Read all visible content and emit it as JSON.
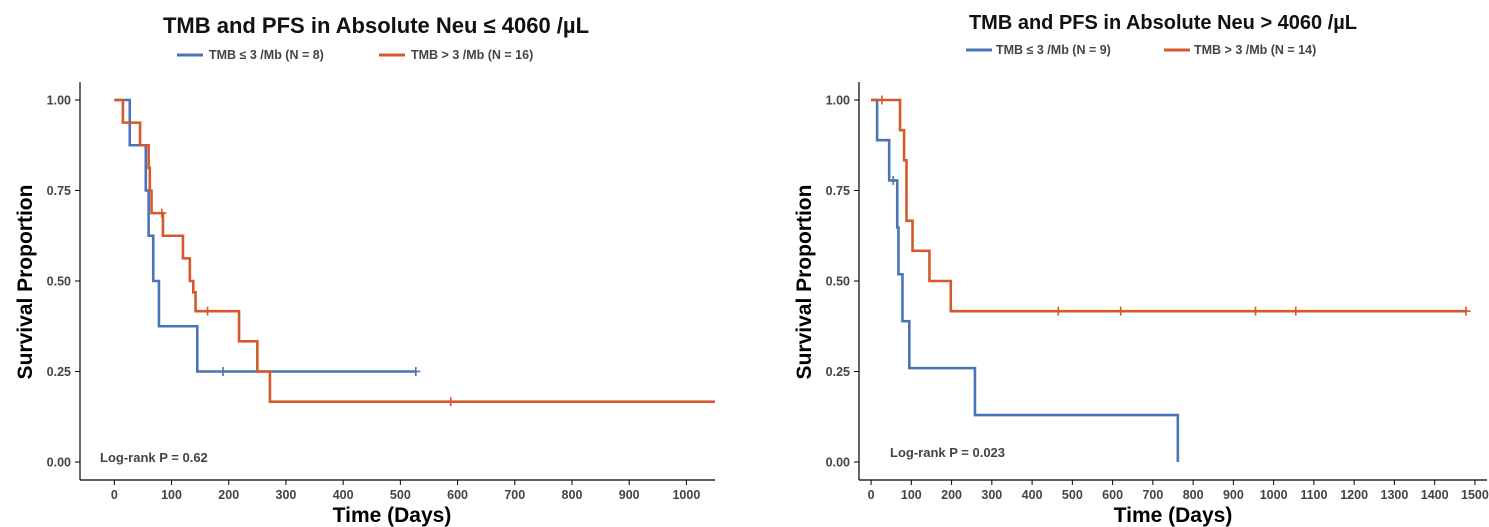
{
  "chart_data": [
    {
      "type": "line",
      "subtype": "kaplan-meier",
      "title": "TMB and PFS in Absolute Neu ≤ 4060 /µL",
      "xlabel": "Time (Days)",
      "ylabel": "Survival Proportion",
      "xlim": [
        -60,
        1050
      ],
      "ylim": [
        0,
        1
      ],
      "x_ticks": [
        0,
        100,
        200,
        300,
        400,
        500,
        600,
        700,
        800,
        900,
        1000
      ],
      "x_tick_labels": [
        "0",
        "100",
        "200",
        "300",
        "400",
        "500",
        "600",
        "700",
        "800",
        "900",
        "1000"
      ],
      "y_ticks": [
        0,
        0.25,
        0.5,
        0.75,
        1
      ],
      "y_tick_labels": [
        "0.00",
        "0.25",
        "0.50",
        "0.75",
        "1.00"
      ],
      "grid": false,
      "legend_position": "top",
      "annotation": "Log-rank P = 0.62",
      "series": [
        {
          "name": "TMB ≤ 3 /Mb (N = 8)",
          "color": "#4a74b4",
          "steps": [
            [
              0,
              1.0
            ],
            [
              27,
              0.875
            ],
            [
              55,
              0.75
            ],
            [
              60,
              0.625
            ],
            [
              68,
              0.5
            ],
            [
              78,
              0.375
            ],
            [
              145,
              0.25
            ],
            [
              527,
              0.25
            ]
          ],
          "censored": [
            [
              190,
              0.25
            ],
            [
              527,
              0.25
            ]
          ]
        },
        {
          "name": "TMB > 3 /Mb (N = 16)",
          "color": "#d45a2c",
          "steps": [
            [
              0,
              1.0
            ],
            [
              15,
              0.9375
            ],
            [
              45,
              0.875
            ],
            [
              60,
              0.8125
            ],
            [
              62,
              0.75
            ],
            [
              65,
              0.6875
            ],
            [
              85,
              0.625
            ],
            [
              120,
              0.5625
            ],
            [
              132,
              0.5
            ],
            [
              138,
              0.4688
            ],
            [
              142,
              0.4167
            ],
            [
              218,
              0.3333
            ],
            [
              250,
              0.25
            ],
            [
              272,
              0.1667
            ],
            [
              1050,
              0.1667
            ]
          ],
          "censored": [
            [
              83,
              0.6875
            ],
            [
              163,
              0.4167
            ],
            [
              588,
              0.1667
            ]
          ]
        }
      ]
    },
    {
      "type": "line",
      "subtype": "kaplan-meier",
      "title": "TMB and PFS in Absolute Neu > 4060 /µL",
      "xlabel": "Time (Days)",
      "ylabel": "Survival Proportion",
      "xlim": [
        -30,
        1530
      ],
      "ylim": [
        0,
        1
      ],
      "x_ticks": [
        0,
        100,
        200,
        300,
        400,
        500,
        600,
        700,
        800,
        900,
        1000,
        1100,
        1200,
        1300,
        1400,
        1500
      ],
      "x_tick_labels": [
        "0",
        "100",
        "200",
        "300",
        "400",
        "500",
        "600",
        "700",
        "800",
        "900",
        "1000",
        "1100",
        "1200",
        "1300",
        "1400",
        "1500"
      ],
      "y_ticks": [
        0,
        0.25,
        0.5,
        0.75,
        1
      ],
      "y_tick_labels": [
        "0.00",
        "0.25",
        "0.50",
        "0.75",
        "1.00"
      ],
      "grid": false,
      "legend_position": "top",
      "annotation": "Log-rank P = 0.023",
      "series": [
        {
          "name": "TMB ≤ 3 /Mb (N = 9)",
          "color": "#4a74b4",
          "steps": [
            [
              0,
              1.0
            ],
            [
              15,
              0.8889
            ],
            [
              45,
              0.7778
            ],
            [
              65,
              0.6481
            ],
            [
              68,
              0.5185
            ],
            [
              78,
              0.3889
            ],
            [
              95,
              0.2593
            ],
            [
              258,
              0.1296
            ],
            [
              762,
              0.0
            ]
          ],
          "censored": [
            [
              55,
              0.7778
            ]
          ]
        },
        {
          "name": "TMB > 3 /Mb (N = 14)",
          "color": "#d45a2c",
          "steps": [
            [
              0,
              1.0
            ],
            [
              72,
              0.9167
            ],
            [
              82,
              0.8333
            ],
            [
              88,
              0.6667
            ],
            [
              103,
              0.5833
            ],
            [
              145,
              0.5
            ],
            [
              198,
              0.4167
            ],
            [
              1478,
              0.4167
            ]
          ],
          "censored": [
            [
              27,
              1.0
            ],
            [
              465,
              0.4167
            ],
            [
              620,
              0.4167
            ],
            [
              955,
              0.4167
            ],
            [
              1055,
              0.4167
            ],
            [
              1478,
              0.4167
            ]
          ]
        }
      ]
    }
  ]
}
